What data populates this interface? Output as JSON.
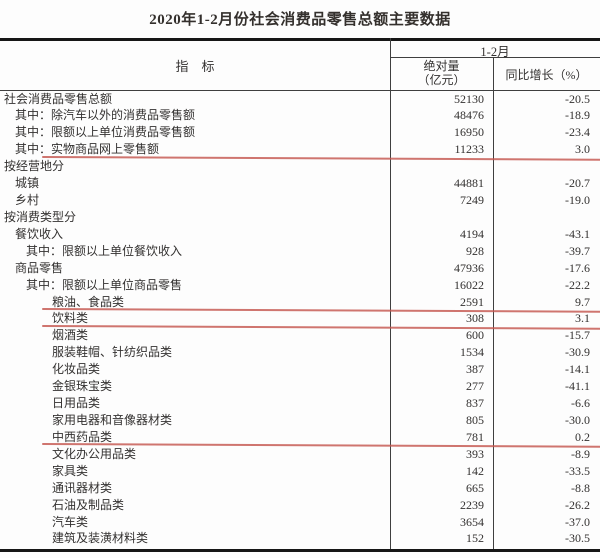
{
  "title": "2020年1-2月份社会消费品零售总额主要数据",
  "annotation_color": "#c4574f",
  "table": {
    "header": {
      "indicator": "指　标",
      "period": "1-2月",
      "absolute_line1": "绝对量",
      "absolute_line2": "（亿元）",
      "growth": "同比增长（%）"
    },
    "rows": [
      {
        "indicator": "社会消费品零售总额",
        "absolute": "52130",
        "growth": "-20.5",
        "indent": 0,
        "underline": false
      },
      {
        "indicator": "其中：除汽车以外的消费品零售额",
        "absolute": "48476",
        "growth": "-18.9",
        "indent": 1,
        "underline": false
      },
      {
        "indicator": "其中：限额以上单位消费品零售额",
        "absolute": "16950",
        "growth": "-23.4",
        "indent": 1,
        "underline": false
      },
      {
        "indicator": "其中：实物商品网上零售额",
        "absolute": "11233",
        "growth": "3.0",
        "indent": 1,
        "underline": true
      },
      {
        "indicator": "按经营地分",
        "absolute": "",
        "growth": "",
        "indent": 0,
        "underline": false
      },
      {
        "indicator": "城镇",
        "absolute": "44881",
        "growth": "-20.7",
        "indent": 1,
        "underline": false
      },
      {
        "indicator": "乡村",
        "absolute": "7249",
        "growth": "-19.0",
        "indent": 1,
        "underline": false
      },
      {
        "indicator": "按消费类型分",
        "absolute": "",
        "growth": "",
        "indent": 0,
        "underline": false
      },
      {
        "indicator": "餐饮收入",
        "absolute": "4194",
        "growth": "-43.1",
        "indent": 1,
        "underline": false
      },
      {
        "indicator": "其中：限额以上单位餐饮收入",
        "absolute": "928",
        "growth": "-39.7",
        "indent": 2,
        "underline": false
      },
      {
        "indicator": "商品零售",
        "absolute": "47936",
        "growth": "-17.6",
        "indent": 1,
        "underline": false
      },
      {
        "indicator": "其中：限额以上单位商品零售",
        "absolute": "16022",
        "growth": "-22.2",
        "indent": 2,
        "underline": false
      },
      {
        "indicator": "粮油、食品类",
        "absolute": "2591",
        "growth": "9.7",
        "indent": 3,
        "underline": true
      },
      {
        "indicator": "饮料类",
        "absolute": "308",
        "growth": "3.1",
        "indent": 3,
        "underline": true
      },
      {
        "indicator": "烟酒类",
        "absolute": "600",
        "growth": "-15.7",
        "indent": 3,
        "underline": false
      },
      {
        "indicator": "服装鞋帽、针纺织品类",
        "absolute": "1534",
        "growth": "-30.9",
        "indent": 3,
        "underline": false
      },
      {
        "indicator": "化妆品类",
        "absolute": "387",
        "growth": "-14.1",
        "indent": 3,
        "underline": false
      },
      {
        "indicator": "金银珠宝类",
        "absolute": "277",
        "growth": "-41.1",
        "indent": 3,
        "underline": false
      },
      {
        "indicator": "日用品类",
        "absolute": "837",
        "growth": "-6.6",
        "indent": 3,
        "underline": false
      },
      {
        "indicator": "家用电器和音像器材类",
        "absolute": "805",
        "growth": "-30.0",
        "indent": 3,
        "underline": false
      },
      {
        "indicator": "中西药品类",
        "absolute": "781",
        "growth": "0.2",
        "indent": 3,
        "underline": true
      },
      {
        "indicator": "文化办公用品类",
        "absolute": "393",
        "growth": "-8.9",
        "indent": 3,
        "underline": false
      },
      {
        "indicator": "家具类",
        "absolute": "142",
        "growth": "-33.5",
        "indent": 3,
        "underline": false
      },
      {
        "indicator": "通讯器材类",
        "absolute": "665",
        "growth": "-8.8",
        "indent": 3,
        "underline": false
      },
      {
        "indicator": "石油及制品类",
        "absolute": "2239",
        "growth": "-26.2",
        "indent": 3,
        "underline": false
      },
      {
        "indicator": "汽车类",
        "absolute": "3654",
        "growth": "-37.0",
        "indent": 3,
        "underline": false
      },
      {
        "indicator": "建筑及装潢材料类",
        "absolute": "152",
        "growth": "-30.5",
        "indent": 3,
        "underline": false
      }
    ]
  }
}
